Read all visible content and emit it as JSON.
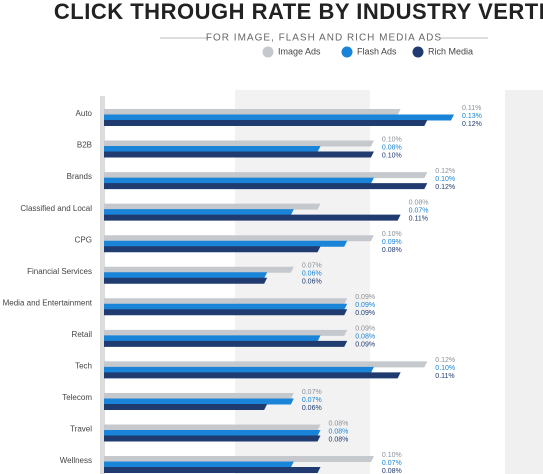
{
  "chart_data": {
    "type": "bar",
    "orientation": "horizontal",
    "title": "CLICK THROUGH RATE BY INDUSTRY VERTICAL",
    "subtitle": "FOR IMAGE, FLASH AND RICH MEDIA ADS",
    "categories": [
      "Auto",
      "B2B",
      "Brands",
      "Classified and Local",
      "CPG",
      "Financial Services",
      "Media and Entertainment",
      "Retail",
      "Tech",
      "Telecom",
      "Travel",
      "Wellness"
    ],
    "series": [
      {
        "name": "Image Ads",
        "color": "#c5c9ce",
        "values": [
          0.11,
          0.1,
          0.12,
          0.08,
          0.1,
          0.07,
          0.09,
          0.09,
          0.12,
          0.07,
          0.08,
          0.1
        ],
        "value_labels": [
          "0.11%",
          "0.10%",
          "0.12%",
          "0.08%",
          "0.10%",
          "0.07%",
          "0.09%",
          "0.09%",
          "0.12%",
          "0.07%",
          "0.08%",
          "0.10%"
        ]
      },
      {
        "name": "Flash Ads",
        "color": "#1a84d8",
        "values": [
          0.13,
          0.08,
          0.1,
          0.07,
          0.09,
          0.06,
          0.09,
          0.08,
          0.1,
          0.07,
          0.08,
          0.07
        ],
        "value_labels": [
          "0.13%",
          "0.08%",
          "0.10%",
          "0.07%",
          "0.09%",
          "0.06%",
          "0.09%",
          "0.08%",
          "0.10%",
          "0.07%",
          "0.08%",
          "0.07%"
        ]
      },
      {
        "name": "Rich Media",
        "color": "#1f3b70",
        "values": [
          0.12,
          0.1,
          0.12,
          0.11,
          0.08,
          0.06,
          0.09,
          0.09,
          0.11,
          0.06,
          0.08,
          0.08
        ],
        "value_labels": [
          "0.12%",
          "0.10%",
          "0.12%",
          "0.11%",
          "0.08%",
          "0.06%",
          "0.09%",
          "0.09%",
          "0.11%",
          "0.06%",
          "0.08%",
          "0.08%"
        ]
      }
    ]
  }
}
